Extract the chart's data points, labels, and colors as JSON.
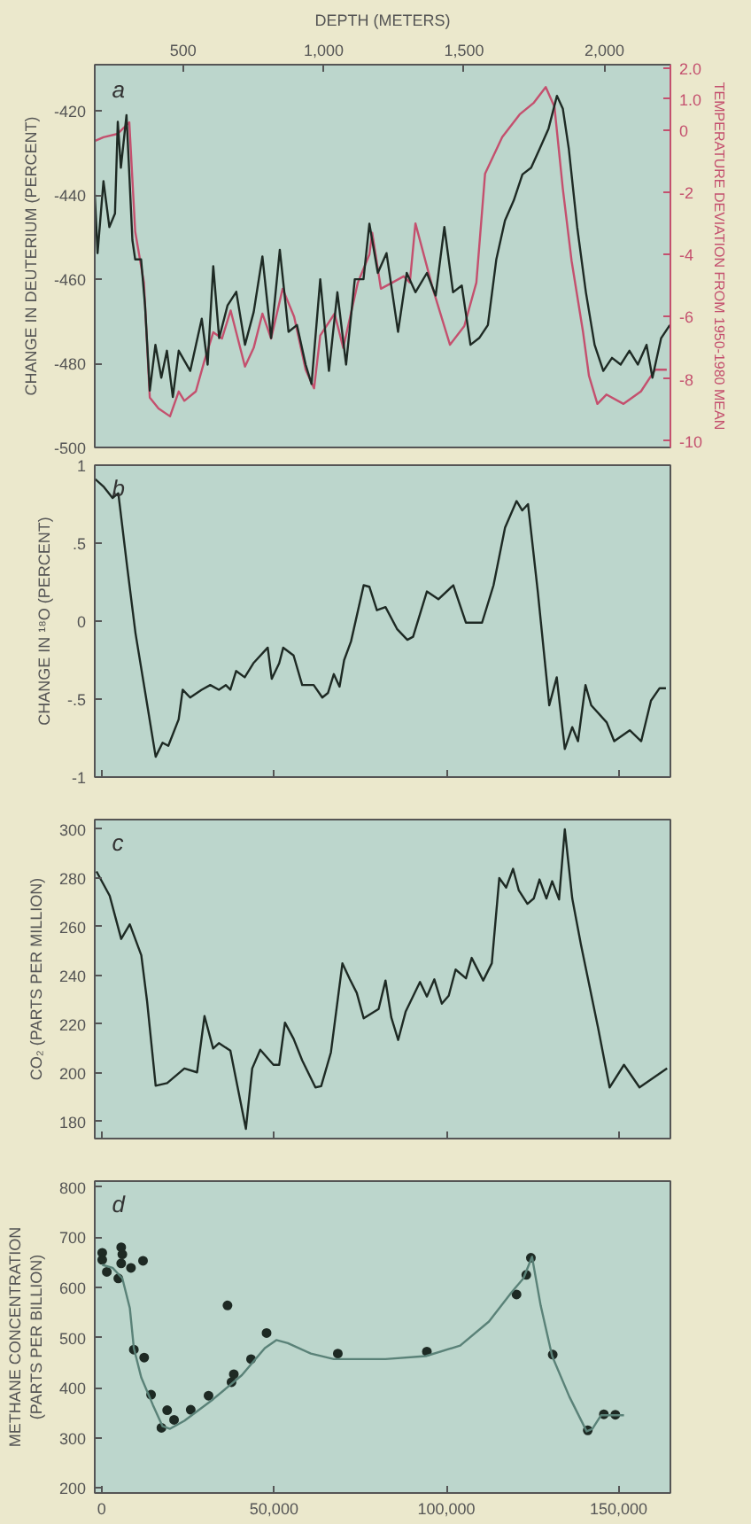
{
  "chart_data": [
    {
      "type": "line",
      "xlabel": "DEPTH (METERS)",
      "ylabel": "CHANGE IN DEUTERIUM (PERCENT)",
      "y2label": "TEMPERATURE DEVIATION FROM 1950-1980 MEAN",
      "annotations": [
        "a"
      ],
      "xlim": [
        185,
        2235
      ],
      "xticks": [
        {
          "value": 500,
          "label": "500"
        },
        {
          "value": 1000,
          "label": "1,000"
        },
        {
          "value": 1500,
          "label": "1,500"
        },
        {
          "value": 2000,
          "label": "2,000"
        }
      ],
      "ylim": [
        -500,
        -409
      ],
      "yticks": [
        -500,
        -480,
        -460,
        -440,
        -420
      ],
      "y2lim": [
        -10.2,
        2.1
      ],
      "y2ticks": [
        {
          "value": 2,
          "label": "2.0"
        },
        {
          "value": 1,
          "label": "1.0"
        },
        0,
        -2,
        -4,
        -6,
        -8,
        -10
      ],
      "series": [
        {
          "color": "#1e2a24",
          "x": [
            185,
            195,
            216,
            237,
            257,
            267,
            278,
            298,
            308,
            319,
            329,
            350,
            364,
            381,
            401,
            422,
            442,
            463,
            484,
            525,
            566,
            587,
            607,
            628,
            658,
            689,
            720,
            751,
            782,
            813,
            844,
            875,
            905,
            936,
            957,
            988,
            1019,
            1049,
            1080,
            1111,
            1142,
            1163,
            1193,
            1224,
            1265,
            1296,
            1327,
            1368,
            1399,
            1430,
            1461,
            1492,
            1523,
            1554,
            1585,
            1615,
            1646,
            1677,
            1708,
            1739,
            1770,
            1801,
            1831,
            1852,
            1873,
            1903,
            1934,
            1965,
            1996,
            2027,
            2058,
            2089,
            2119,
            2150,
            2171,
            2202,
            2233
          ],
          "values": [
            -439.8,
            -453.8,
            -436.7,
            -447.6,
            -444.4,
            -422.6,
            -433.5,
            -421,
            -435,
            -450.7,
            -455.3,
            -455.3,
            -466.2,
            -486.5,
            -475.6,
            -483.4,
            -477,
            -488,
            -477,
            -481.8,
            -469.4,
            -480.3,
            -456.9,
            -474,
            -466.2,
            -463,
            -475.6,
            -467.8,
            -454.6,
            -474,
            -453,
            -472.5,
            -470.9,
            -480.3,
            -484.9,
            -460,
            -481.8,
            -463.1,
            -480.3,
            -460,
            -460,
            -446.8,
            -458.5,
            -453.8,
            -472.5,
            -458.5,
            -463.1,
            -458.5,
            -463.9,
            -447.6,
            -463.1,
            -461.5,
            -475.6,
            -474,
            -470.9,
            -455.3,
            -446,
            -441.3,
            -435.1,
            -433.5,
            -428.9,
            -424.2,
            -416.4,
            -419.5,
            -428.9,
            -447.6,
            -463.1,
            -475.6,
            -481.8,
            -478.7,
            -480.3,
            -477,
            -480.3,
            -475.6,
            -483.4,
            -474,
            -470.9
          ]
        },
        {
          "color": "#c4506e",
          "axis": "y2",
          "x": [
            185,
            216,
            267,
            308,
            329,
            360,
            381,
            412,
            453,
            484,
            504,
            545,
            576,
            607,
            638,
            669,
            720,
            751,
            782,
            813,
            854,
            895,
            936,
            966,
            988,
            1039,
            1070,
            1122,
            1163,
            1173,
            1204,
            1245,
            1285,
            1307,
            1327,
            1389,
            1450,
            1501,
            1544,
            1575,
            1636,
            1698,
            1749,
            1791,
            1822,
            1852,
            1883,
            1924,
            1945,
            1975,
            2007,
            2068,
            2130,
            2181,
            2222
          ],
          "values": [
            -0.35,
            -0.23,
            -0.12,
            0.25,
            -3.26,
            -4.9,
            -8.6,
            -8.95,
            -9.2,
            -8.4,
            -8.7,
            -8.4,
            -7.4,
            -6.5,
            -6.7,
            -5.8,
            -7.6,
            -7.0,
            -5.9,
            -6.7,
            -5.1,
            -6.0,
            -7.7,
            -8.3,
            -6.6,
            -5.9,
            -7.0,
            -4.9,
            -4.0,
            -3.3,
            -5.1,
            -4.9,
            -4.7,
            -4.9,
            -3.0,
            -5.1,
            -6.9,
            -6.3,
            -4.9,
            -1.4,
            -0.23,
            0.5,
            0.88,
            1.38,
            0.75,
            -1.9,
            -4.2,
            -6.5,
            -7.9,
            -8.8,
            -8.5,
            -8.8,
            -8.4,
            -7.7,
            -7.7
          ]
        }
      ]
    },
    {
      "type": "line",
      "ylabel": "CHANGE IN ¹⁸O (PERCENT)",
      "annotations": [
        "b"
      ],
      "tick_labels": "y",
      "xlim": [
        -2000,
        165000
      ],
      "xticks": [
        0,
        50000,
        100000,
        150000
      ],
      "ylim": [
        -1,
        1
      ],
      "yticks": [
        -1,
        {
          "value": -0.5,
          "label": "-.5"
        },
        0,
        {
          "value": 0.5,
          "label": ".5"
        },
        1
      ],
      "series": [
        {
          "color": "#1e2a24",
          "x": [
            -1834,
            667,
            3167,
            4834,
            7335,
            9835,
            13169,
            15670,
            17670,
            19337,
            22338,
            23505,
            25672,
            29006,
            31506,
            34007,
            36007,
            37341,
            39008,
            41508,
            44009,
            48176,
            49343,
            51510,
            52677,
            55678,
            58178,
            61512,
            64013,
            65680,
            67347,
            69014,
            70347,
            72347,
            76015,
            77682,
            79849,
            82349,
            85683,
            88684,
            90351,
            94351,
            97685,
            102019,
            105687,
            110355,
            113689,
            117023,
            120357,
            122024,
            123691,
            126525,
            129859,
            132026,
            134360,
            136527,
            138194,
            140361,
            142028,
            146529,
            148696,
            153197,
            156531,
            159365,
            161866,
            163700
          ],
          "values": [
            0.91,
            0.86,
            0.79,
            0.82,
            0.36,
            -0.08,
            -0.53,
            -0.87,
            -0.78,
            -0.8,
            -0.63,
            -0.44,
            -0.49,
            -0.44,
            -0.41,
            -0.44,
            -0.41,
            -0.44,
            -0.32,
            -0.36,
            -0.27,
            -0.17,
            -0.37,
            -0.27,
            -0.17,
            -0.22,
            -0.41,
            -0.41,
            -0.49,
            -0.46,
            -0.34,
            -0.42,
            -0.25,
            -0.13,
            0.23,
            0.22,
            0.07,
            0.09,
            -0.05,
            -0.12,
            -0.1,
            0.19,
            0.14,
            0.23,
            -0.01,
            -0.01,
            0.23,
            0.6,
            0.77,
            0.71,
            0.75,
            0.19,
            -0.54,
            -0.36,
            -0.82,
            -0.68,
            -0.77,
            -0.41,
            -0.54,
            -0.65,
            -0.77,
            -0.7,
            -0.77,
            -0.51,
            -0.43,
            -0.43
          ]
        }
      ]
    },
    {
      "type": "line",
      "ylabel": "CO₂ (PARTS PER MILLION)",
      "annotations": [
        "c"
      ],
      "tick_labels": "y",
      "xlim": [
        -2000,
        165000
      ],
      "xticks": [
        0,
        50000,
        100000,
        150000
      ],
      "ylim": [
        173,
        304
      ],
      "yticks": [
        180,
        200,
        220,
        240,
        260,
        280,
        300
      ],
      "series": [
        {
          "color": "#1e2a24",
          "x": [
            -1500,
            2334,
            5668,
            8168,
            11502,
            13169,
            15670,
            19004,
            24005,
            27672,
            29839,
            32340,
            34007,
            37341,
            41842,
            43676,
            46009,
            49843,
            51510,
            53177,
            55678,
            58178,
            62012,
            63679,
            66513,
            69847,
            72014,
            74014,
            76015,
            80349,
            82349,
            84016,
            86017,
            88184,
            92351,
            94351,
            96518,
            98685,
            100686,
            102686,
            105687,
            107354,
            110688,
            113189,
            115356,
            117356,
            119357,
            121024,
            123524,
            125358,
            127025,
            129026,
            130693,
            132693,
            134360,
            136527,
            139028,
            144029,
            147363,
            151531,
            156031,
            164033
          ],
          "values": [
            282.7,
            272.7,
            255,
            261,
            248.3,
            229.5,
            194.7,
            195.8,
            201.8,
            200.2,
            223.3,
            210,
            212.2,
            209.1,
            177,
            201.8,
            209.5,
            203.3,
            203.3,
            220.6,
            214,
            205.1,
            194,
            194.5,
            208.4,
            245,
            238.4,
            232.8,
            222.4,
            226.2,
            237.9,
            222.8,
            213.5,
            225.1,
            237.3,
            231.3,
            238.4,
            228.4,
            231.7,
            242.4,
            238.8,
            247.2,
            237.9,
            245,
            280,
            276.1,
            283.8,
            274.9,
            269.4,
            271.6,
            279.4,
            271.6,
            278.7,
            271.2,
            300,
            271.6,
            252.8,
            218.4,
            194,
            203.3,
            194,
            201.8
          ]
        }
      ]
    },
    {
      "type": "scatter",
      "ylabel": "METHANE CONCENTRATION\n(PARTS PER BILLION)",
      "annotations": [
        "d"
      ],
      "xlim": [
        -2000,
        165000
      ],
      "xticks": [
        0,
        {
          "value": 50000,
          "label": "50,000"
        },
        {
          "value": 100000,
          "label": "100,000"
        },
        {
          "value": 150000,
          "label": "150,000"
        }
      ],
      "ylim": [
        190,
        812
      ],
      "yticks": [
        200,
        300,
        400,
        500,
        600,
        700,
        800
      ],
      "series": [
        {
          "color": "#1e2a24",
          "marker": "circle",
          "x": [
            167,
            167,
            1500,
            4834,
            5668,
            6001,
            5668,
            8501,
            12002,
            9335,
            12336,
            14336,
            17337,
            19004,
            21004,
            25839,
            31006,
            36507,
            37674,
            38341,
            43342,
            47843,
            68513,
            94351,
            120357,
            123191,
            124524,
            130860,
            141028,
            145696,
            149030
          ],
          "values": [
            669,
            655,
            631,
            618,
            680,
            666,
            648,
            639,
            653,
            476,
            460,
            386,
            320,
            355,
            336,
            356,
            384,
            564,
            411,
            427,
            457,
            509,
            468,
            472,
            586,
            625,
            659,
            466,
            315,
            347,
            346
          ]
        },
        {
          "type": "line",
          "color": "#5a8278",
          "x": [
            167,
            3167,
            6001,
            8168,
            9335,
            11502,
            14836,
            17670,
            19837,
            24005,
            32340,
            40675,
            47343,
            50677,
            54011,
            60679,
            67347,
            82349,
            94018,
            104020,
            112355,
            119023,
            122357,
            124857,
            127358,
            130693,
            135693,
            140694,
            142361,
            144862,
            147363,
            151531
          ],
          "values": [
            645,
            639,
            618,
            559,
            479,
            420,
            366,
            323,
            318,
            334,
            377,
            425,
            479,
            495,
            489,
            468,
            457,
            457,
            463,
            484,
            532,
            591,
            618,
            661,
            564,
            463,
            382,
            313,
            318,
            345,
            345,
            345
          ]
        }
      ]
    }
  ]
}
